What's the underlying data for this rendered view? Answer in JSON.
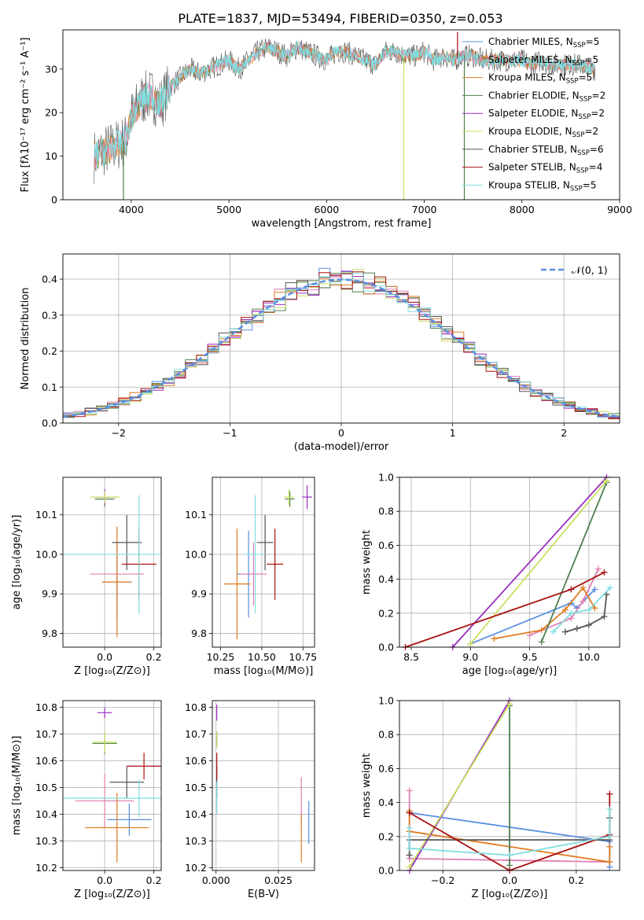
{
  "figure_title": "PLATE=1837, MJD=53494, FIBERID=0350, z=0.053",
  "colors": {
    "Chabrier MILES": "#5a8fe0",
    "Salpeter MILES": "#e07fb0",
    "Kroupa MILES": "#e07b20",
    "Chabrier ELODIE": "#4f7f4f",
    "Salpeter ELODIE": "#9a2ec0",
    "Kroupa ELODIE": "#c8e060",
    "Chabrier STELIB": "#555555",
    "Salpeter STELIB": "#aa1111",
    "Kroupa STELIB": "#7fdde0",
    "gauss": "#5a8fe0"
  },
  "chart_data": [
    {
      "id": "spectrum",
      "type": "line",
      "xlabel": "wavelength [Angstrom, rest frame]",
      "ylabel": "Flux [fλ10⁻¹⁷ erg cm⁻² s⁻¹ A⁻¹]",
      "xlim": [
        3300,
        9000
      ],
      "ylim": [
        0,
        39
      ],
      "xticks": [
        4000,
        5000,
        6000,
        7000,
        8000,
        9000
      ],
      "yticks": [
        0,
        10,
        20,
        30
      ],
      "grid": false,
      "legend": "top-right",
      "legend_entries": [
        {
          "label": "Chabrier MILES, N",
          "sub": "SSP",
          "suffix": "=5",
          "color": "#5a8fe0"
        },
        {
          "label": "Salpeter MILES, N",
          "sub": "SSP",
          "suffix": "=5",
          "color": "#e07fb0"
        },
        {
          "label": "Kroupa MILES, N",
          "sub": "SSP",
          "suffix": "=5",
          "color": "#e07b20"
        },
        {
          "label": "Chabrier ELODIE, N",
          "sub": "SSP",
          "suffix": "=2",
          "color": "#4f7f4f"
        },
        {
          "label": "Salpeter ELODIE, N",
          "sub": "SSP",
          "suffix": "=2",
          "color": "#9a2ec0"
        },
        {
          "label": "Kroupa ELODIE, N",
          "sub": "SSP",
          "suffix": "=2",
          "color": "#c8e060"
        },
        {
          "label": "Chabrier STELIB, N",
          "sub": "SSP",
          "suffix": "=6",
          "color": "#555555"
        },
        {
          "label": "Salpeter STELIB, N",
          "sub": "SSP",
          "suffix": "=4",
          "color": "#aa1111"
        },
        {
          "label": "Kroupa STELIB, N",
          "sub": "SSP",
          "suffix": "=5",
          "color": "#7fdde0"
        }
      ],
      "continuum": {
        "x": [
          3620,
          3700,
          3800,
          3900,
          3950,
          4000,
          4100,
          4200,
          4300,
          4400,
          4500,
          4600,
          4700,
          4800,
          4900,
          5000,
          5100,
          5200,
          5300,
          5400,
          5500,
          5600,
          5700,
          5800,
          5900,
          6000,
          6100,
          6200,
          6300,
          6400,
          6500,
          6600,
          6700,
          6800,
          6900,
          7000,
          7100,
          7200,
          7300,
          7400,
          7500,
          7600,
          7700,
          7800,
          7900,
          8000,
          8100,
          8200,
          8300,
          8400,
          8500,
          8600,
          8700,
          8750
        ],
        "y": [
          10,
          11,
          12,
          13,
          14,
          19,
          23,
          24,
          22,
          26,
          28,
          30,
          29,
          30,
          31,
          32,
          30,
          32,
          34,
          35,
          34,
          33,
          35,
          34,
          33,
          32,
          34,
          34,
          33,
          32,
          31,
          34,
          34,
          33,
          33,
          34,
          32,
          33,
          32,
          33,
          33,
          32,
          32,
          32,
          32,
          32,
          31,
          32,
          31,
          31,
          31,
          31,
          30,
          30
        ]
      },
      "spikes": [
        {
          "x": 3920,
          "y": 0
        },
        {
          "x": 6790,
          "y": 0
        },
        {
          "x": 7410,
          "y": 0
        },
        {
          "x": 7340,
          "y": 38.5
        }
      ]
    },
    {
      "id": "residuals",
      "type": "step",
      "xlabel": "(data-model)/error",
      "ylabel": "Normed distribution",
      "xlim": [
        -2.5,
        2.5
      ],
      "ylim": [
        0,
        0.47
      ],
      "xticks": [
        -2,
        -1,
        0,
        1,
        2
      ],
      "yticks": [
        0.0,
        0.1,
        0.2,
        0.3,
        0.4
      ],
      "grid": true,
      "legend": "top-right",
      "legend_entries": [
        {
          "label": "𝒩(0, 1)",
          "color": "#5a8fe0",
          "style": "dashed"
        }
      ],
      "bin_width": 0.1
    },
    {
      "id": "age-vs-Z",
      "type": "errorbar",
      "xlabel": "Z [log₁₀(Z/Z⊙)]",
      "ylabel": "age  [log₁₀(age/yr)]",
      "xlim": [
        -0.17,
        0.23
      ],
      "ylim": [
        9.765,
        10.195
      ],
      "xticks": [
        0.0,
        0.2
      ],
      "xtick_labels": [
        "0.0",
        "0.2"
      ],
      "yticks": [
        9.8,
        9.9,
        10.0,
        10.1
      ],
      "grid": true,
      "points": [
        {
          "model": "Chabrier MILES",
          "x": 0.05,
          "xerr": 0.06,
          "y": 9.93,
          "yerr": 0.1
        },
        {
          "model": "Salpeter MILES",
          "x": 0.05,
          "xerr": 0.11,
          "y": 9.95,
          "yerr": 0.07
        },
        {
          "model": "Kroupa MILES",
          "x": 0.05,
          "xerr": 0.06,
          "y": 9.93,
          "yerr": 0.14
        },
        {
          "model": "Chabrier ELODIE",
          "x": 0.0,
          "xerr": 0.04,
          "y": 10.14,
          "yerr": 0.02
        },
        {
          "model": "Salpeter ELODIE",
          "x": 0.0,
          "xerr": 0.05,
          "y": 10.145,
          "yerr": 0.02
        },
        {
          "model": "Kroupa ELODIE",
          "x": 0.0,
          "xerr": 0.06,
          "y": 10.145,
          "yerr": 0.015
        },
        {
          "model": "Chabrier STELIB",
          "x": 0.09,
          "xerr": 0.06,
          "y": 10.03,
          "yerr": 0.07
        },
        {
          "model": "Salpeter STELIB",
          "x": 0.14,
          "xerr": 0.07,
          "y": 9.975,
          "yerr": 0.09
        },
        {
          "model": "Kroupa STELIB",
          "x": 0.14,
          "xerr": 0.35,
          "y": 10.0,
          "yerr": 0.15
        }
      ]
    },
    {
      "id": "age-vs-mass",
      "type": "errorbar",
      "xlabel": "mass [log₁₀(M/M⊙)]",
      "ylabel": "",
      "xlim": [
        10.2,
        10.82
      ],
      "ylim": [
        9.765,
        10.195
      ],
      "xticks": [
        10.25,
        10.5,
        10.75
      ],
      "xtick_labels": [
        "10.25",
        "10.50",
        "10.75"
      ],
      "yticks": [
        9.8,
        9.9,
        10.0,
        10.1
      ],
      "grid": true,
      "points": [
        {
          "model": "Chabrier MILES",
          "x": 10.42,
          "xerr": 0.07,
          "y": 9.95,
          "yerr": 0.11
        },
        {
          "model": "Salpeter MILES",
          "x": 10.45,
          "xerr": 0.08,
          "y": 9.95,
          "yerr": 0.08
        },
        {
          "model": "Kroupa MILES",
          "x": 10.35,
          "xerr": 0.08,
          "y": 9.925,
          "yerr": 0.14
        },
        {
          "model": "Chabrier ELODIE",
          "x": 10.67,
          "xerr": 0.03,
          "y": 10.14,
          "yerr": 0.02
        },
        {
          "model": "Salpeter ELODIE",
          "x": 10.775,
          "xerr": 0.03,
          "y": 10.145,
          "yerr": 0.03
        },
        {
          "model": "Kroupa ELODIE",
          "x": 10.665,
          "xerr": 0.03,
          "y": 10.145,
          "yerr": 0.02
        },
        {
          "model": "Chabrier STELIB",
          "x": 10.52,
          "xerr": 0.05,
          "y": 10.03,
          "yerr": 0.07
        },
        {
          "model": "Salpeter STELIB",
          "x": 10.58,
          "xerr": 0.05,
          "y": 9.975,
          "yerr": 0.09
        },
        {
          "model": "Kroupa STELIB",
          "x": 10.46,
          "xerr": 0.06,
          "y": 10.0,
          "yerr": 0.15
        }
      ]
    },
    {
      "id": "mass-weight-vs-age",
      "type": "line",
      "xlabel": "age  [log₁₀(age/yr)]",
      "ylabel": "mass weight",
      "xlim": [
        8.4,
        10.26
      ],
      "ylim": [
        0,
        1.0
      ],
      "xticks": [
        8.5,
        9.0,
        9.5,
        10.0
      ],
      "yticks": [
        0.0,
        0.2,
        0.4,
        0.6,
        0.8,
        1.0
      ],
      "grid": true,
      "series": [
        {
          "model": "Chabrier MILES",
          "x": [
            9.0,
            9.85,
            9.9,
            10.05
          ],
          "y": [
            0.02,
            0.26,
            0.23,
            0.34
          ]
        },
        {
          "model": "Salpeter MILES",
          "x": [
            9.5,
            9.85,
            9.95,
            10.08
          ],
          "y": [
            0.07,
            0.17,
            0.27,
            0.46
          ]
        },
        {
          "model": "Kroupa MILES",
          "x": [
            9.2,
            9.6,
            9.8,
            9.95,
            10.05
          ],
          "y": [
            0.05,
            0.1,
            0.22,
            0.35,
            0.23
          ]
        },
        {
          "model": "Chabrier ELODIE",
          "x": [
            9.6,
            10.15
          ],
          "y": [
            0.03,
            0.97
          ]
        },
        {
          "model": "Salpeter ELODIE",
          "x": [
            8.85,
            10.15
          ],
          "y": [
            0.0,
            1.0
          ]
        },
        {
          "model": "Kroupa ELODIE",
          "x": [
            9.0,
            10.15
          ],
          "y": [
            0.02,
            0.98
          ]
        },
        {
          "model": "Chabrier STELIB",
          "x": [
            9.8,
            9.9,
            10.0,
            10.13,
            10.15
          ],
          "y": [
            0.09,
            0.11,
            0.13,
            0.18,
            0.31
          ]
        },
        {
          "model": "Salpeter STELIB",
          "x": [
            8.45,
            9.85,
            10.13
          ],
          "y": [
            0.0,
            0.34,
            0.44
          ]
        },
        {
          "model": "Kroupa STELIB",
          "x": [
            9.7,
            9.85,
            10.0,
            10.18
          ],
          "y": [
            0.09,
            0.2,
            0.22,
            0.35
          ]
        }
      ]
    },
    {
      "id": "mass-vs-Z",
      "type": "errorbar",
      "xlabel": "Z [log₁₀(Z/Z⊙)]",
      "ylabel": "mass [log₁₀(M/M⊙)]",
      "xlim": [
        -0.17,
        0.23
      ],
      "ylim": [
        10.19,
        10.825
      ],
      "xticks": [
        0.0,
        0.2
      ],
      "xtick_labels": [
        "0.0",
        "0.2"
      ],
      "yticks": [
        10.2,
        10.3,
        10.4,
        10.5,
        10.6,
        10.7,
        10.8
      ],
      "grid": true,
      "points": [
        {
          "model": "Chabrier MILES",
          "x": 0.1,
          "xerr": 0.09,
          "y": 10.38,
          "yerr": 0.06
        },
        {
          "model": "Salpeter MILES",
          "x": 0.0,
          "xerr": 0.12,
          "y": 10.45,
          "yerr": 0.1
        },
        {
          "model": "Kroupa MILES",
          "x": 0.05,
          "xerr": 0.13,
          "y": 10.35,
          "yerr": 0.13
        },
        {
          "model": "Chabrier ELODIE",
          "x": 0.0,
          "xerr": 0.05,
          "y": 10.665,
          "yerr": 0.04
        },
        {
          "model": "Salpeter ELODIE",
          "x": 0.0,
          "xerr": 0.03,
          "y": 10.78,
          "yerr": 0.02
        },
        {
          "model": "Kroupa ELODIE",
          "x": 0.0,
          "xerr": 0.05,
          "y": 10.67,
          "yerr": 0.04
        },
        {
          "model": "Chabrier STELIB",
          "x": 0.09,
          "xerr": 0.07,
          "y": 10.52,
          "yerr": 0.06
        },
        {
          "model": "Salpeter STELIB",
          "x": 0.16,
          "xerr": 0.07,
          "y": 10.58,
          "yerr": 0.05
        },
        {
          "model": "Kroupa STELIB",
          "x": 0.14,
          "xerr": 0.35,
          "y": 10.46,
          "yerr": 0.07
        }
      ]
    },
    {
      "id": "mass-vs-ebv",
      "type": "errorbar",
      "xlabel": "E(B-V)",
      "ylabel": "",
      "xlim": [
        -0.0015,
        0.0395
      ],
      "ylim": [
        10.19,
        10.825
      ],
      "xticks": [
        0.0,
        0.025
      ],
      "xtick_labels": [
        "0.000",
        "0.025"
      ],
      "yticks": [
        10.2,
        10.3,
        10.4,
        10.5,
        10.6,
        10.7,
        10.8
      ],
      "grid": true,
      "points": [
        {
          "model": "Chabrier MILES",
          "x": 0.0372,
          "xerr": 0,
          "y": 10.37,
          "yerr": 0.08
        },
        {
          "model": "Salpeter MILES",
          "x": 0.0342,
          "xerr": 0,
          "y": 10.45,
          "yerr": 0.09
        },
        {
          "model": "Kroupa MILES",
          "x": 0.0342,
          "xerr": 0,
          "y": 10.31,
          "yerr": 0.09
        },
        {
          "model": "Chabrier ELODIE",
          "x": 0.0003,
          "xerr": 0,
          "y": 10.68,
          "yerr": 0.03
        },
        {
          "model": "Salpeter ELODIE",
          "x": 0.0003,
          "xerr": 0,
          "y": 10.78,
          "yerr": 0.03
        },
        {
          "model": "Kroupa ELODIE",
          "x": 0.0003,
          "xerr": 0,
          "y": 10.68,
          "yerr": 0.03
        },
        {
          "model": "Chabrier STELIB",
          "x": 0.0003,
          "xerr": 0,
          "y": 10.52,
          "yerr": 0.06
        },
        {
          "model": "Salpeter STELIB",
          "x": 0.0003,
          "xerr": 0,
          "y": 10.58,
          "yerr": 0.05
        },
        {
          "model": "Kroupa STELIB",
          "x": 0.0003,
          "xerr": 0,
          "y": 10.46,
          "yerr": 0.06
        }
      ]
    },
    {
      "id": "mass-weight-vs-Z",
      "type": "line",
      "xlabel": "Z [log₁₀(Z/Z⊙)]",
      "ylabel": "mass weight",
      "xlim": [
        -0.33,
        0.33
      ],
      "ylim": [
        0,
        1.0
      ],
      "xticks": [
        -0.2,
        0.0,
        0.2
      ],
      "xtick_labels": [
        "−0.2",
        "0.0",
        "0.2"
      ],
      "yticks": [
        0.0,
        0.2,
        0.4,
        0.6,
        0.8,
        1.0
      ],
      "grid": true,
      "series": [
        {
          "model": "Chabrier MILES",
          "x": [
            -0.3,
            0.3,
            0.3
          ],
          "y": [
            0.34,
            0.17,
            0.02
          ]
        },
        {
          "model": "Salpeter MILES",
          "x": [
            -0.3,
            -0.3,
            0.3
          ],
          "y": [
            0.47,
            0.07,
            0.05
          ]
        },
        {
          "model": "Kroupa MILES",
          "x": [
            -0.3,
            -0.3,
            0.3,
            0.3
          ],
          "y": [
            0.35,
            0.23,
            0.05,
            0.14
          ]
        },
        {
          "model": "Chabrier ELODIE",
          "x": [
            0.0,
            0.0
          ],
          "y": [
            0.97,
            0.03
          ]
        },
        {
          "model": "Salpeter ELODIE",
          "x": [
            -0.3,
            0.0
          ],
          "y": [
            0.0,
            1.0
          ]
        },
        {
          "model": "Kroupa ELODIE",
          "x": [
            -0.3,
            0.0
          ],
          "y": [
            0.02,
            0.98
          ]
        },
        {
          "model": "Chabrier STELIB",
          "x": [
            -0.3,
            -0.3,
            0.3,
            0.3
          ],
          "y": [
            0.09,
            0.18,
            0.18,
            0.31
          ]
        },
        {
          "model": "Salpeter STELIB",
          "x": [
            -0.3,
            0.0,
            0.3,
            0.3
          ],
          "y": [
            0.34,
            0.0,
            0.21,
            0.45
          ]
        },
        {
          "model": "Kroupa STELIB",
          "x": [
            -0.3,
            -0.3,
            0.0,
            0.3,
            0.3
          ],
          "y": [
            0.25,
            0.13,
            0.09,
            0.2,
            0.36
          ]
        }
      ]
    }
  ]
}
